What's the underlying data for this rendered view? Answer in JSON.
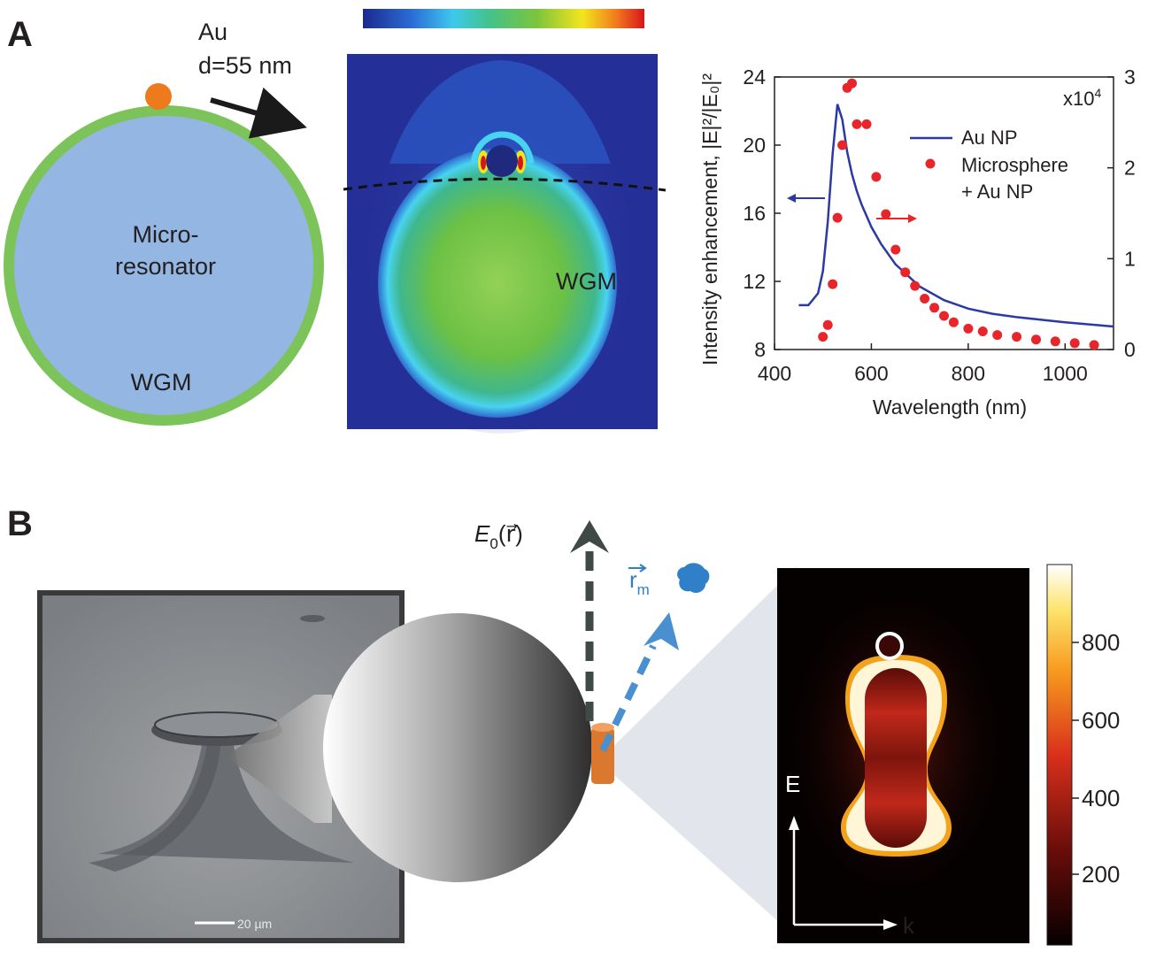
{
  "panel_a": {
    "label": "A",
    "particle_label": "Au",
    "particle_size": "d=55 nm",
    "resonator_line1": "Micro-",
    "resonator_line2": "resonator",
    "wgm_left": "WGM",
    "wgm_field": "WGM",
    "colors": {
      "resonator_fill": "#93b6e2",
      "wgm_ring": "#7cc35a",
      "particle": "#ee7a1e",
      "field_bg": "#242f97",
      "curve": "#2b3aa3",
      "dots": "#e8252a"
    }
  },
  "chart_data": {
    "type": "line",
    "xlabel": "Wavelength (nm)",
    "ylabel": "Intensity enhancement, |E|²/|E₀|²",
    "xlim": [
      400,
      1100
    ],
    "ylim_left": [
      8,
      24
    ],
    "ylim_right": [
      0,
      3
    ],
    "xticks": [
      "400",
      "600",
      "800",
      "1000"
    ],
    "yticks_left": [
      "8",
      "12",
      "16",
      "20",
      "24"
    ],
    "yticks_right": [
      "0",
      "1",
      "2",
      "3"
    ],
    "right_axis_multiplier": "x10",
    "right_axis_exponent": "4",
    "grid": false,
    "legend_position": "top-right",
    "series": [
      {
        "name": "Au NP",
        "style": "line",
        "axis": "left",
        "x": [
          450,
          470,
          490,
          500,
          510,
          520,
          530,
          540,
          550,
          560,
          570,
          580,
          600,
          620,
          650,
          700,
          750,
          800,
          850,
          900,
          1000,
          1100
        ],
        "y": [
          10.6,
          10.6,
          11.3,
          12.6,
          15.5,
          19.5,
          22.4,
          21.5,
          19.6,
          18.3,
          17.3,
          16.5,
          15.2,
          14.2,
          13.0,
          11.7,
          10.9,
          10.4,
          10.1,
          9.9,
          9.6,
          9.35
        ]
      },
      {
        "name": "Microsphere + Au NP",
        "style": "scatter",
        "axis": "right",
        "x": [
          500,
          510,
          520,
          530,
          540,
          550,
          560,
          570,
          590,
          610,
          630,
          650,
          670,
          690,
          710,
          730,
          750,
          770,
          800,
          830,
          860,
          900,
          940,
          980,
          1020,
          1060
        ],
        "y": [
          0.14,
          0.27,
          0.72,
          1.45,
          2.25,
          2.88,
          2.93,
          2.48,
          2.48,
          1.9,
          1.49,
          1.1,
          0.85,
          0.7,
          0.56,
          0.46,
          0.37,
          0.3,
          0.23,
          0.2,
          0.16,
          0.14,
          0.11,
          0.09,
          0.07,
          0.05
        ]
      }
    ],
    "legend_line1": "Au NP",
    "legend_line2": "Microsphere",
    "legend_line3": "+ Au NP"
  },
  "panel_b": {
    "label": "B",
    "field_label_E": "E",
    "field_label_sub": "0",
    "field_label_arg": "(r⃗)",
    "position_label": "r",
    "position_sub": "m",
    "scale_bar": "20 µm",
    "axis_E": "E",
    "axis_k": "k",
    "colorbar_ticks": [
      "800",
      "600",
      "400",
      "200"
    ],
    "colors": {
      "sphere_light": "#ffffff",
      "sphere_dark": "#2e2e2e",
      "rod": "#d9782e",
      "arrow_dark": "#3f4a47",
      "arrow_blue": "#4a90d0",
      "molecule": "#2f7fc9"
    }
  }
}
